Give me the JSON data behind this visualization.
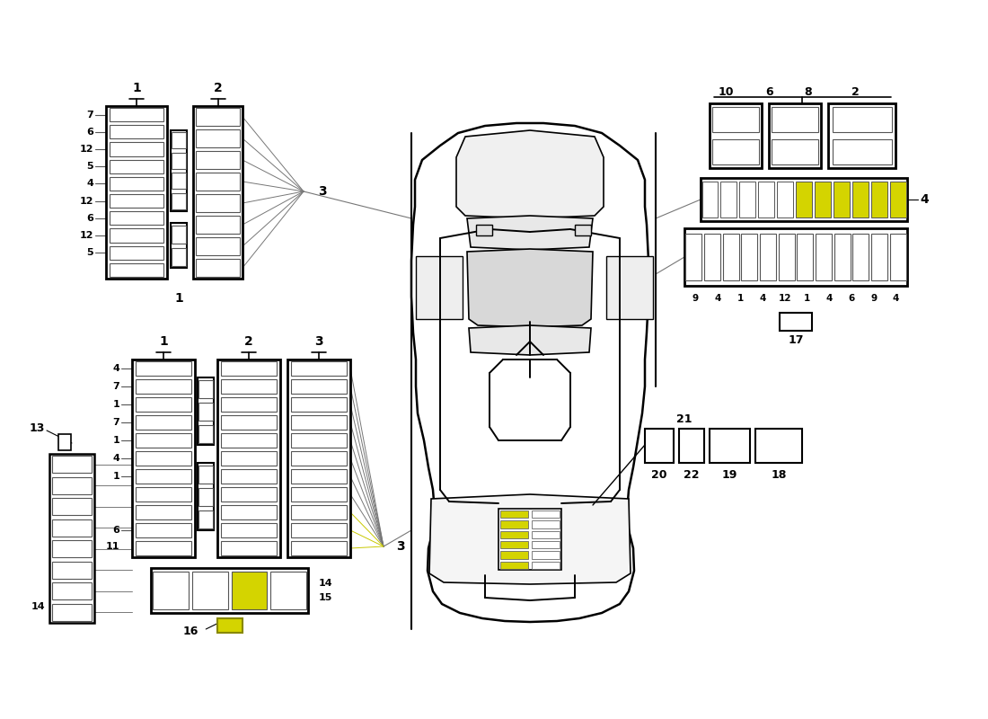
{
  "background_color": "#ffffff",
  "line_color_dark": "#000000",
  "line_color_mid": "#888888",
  "yellow_fill": "#d4d400",
  "yellow_border": "#888800",
  "watermark_color": "#d4d4a0"
}
